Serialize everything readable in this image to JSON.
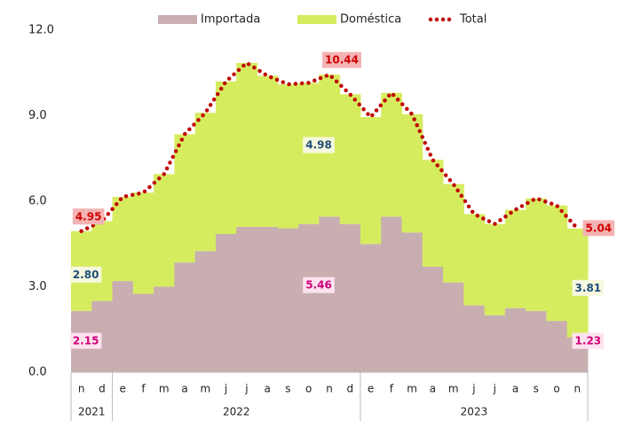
{
  "chart_data": {
    "type": "stacked_step_area",
    "categories": [
      "n",
      "d",
      "e",
      "f",
      "m",
      "a",
      "m",
      "j",
      "j",
      "a",
      "s",
      "o",
      "n",
      "d",
      "e",
      "f",
      "m",
      "a",
      "m",
      "j",
      "j",
      "a",
      "s",
      "o",
      "n"
    ],
    "year_groups": [
      {
        "label": "2021",
        "start": 0,
        "end": 1
      },
      {
        "label": "2022",
        "start": 2,
        "end": 13
      },
      {
        "label": "2023",
        "start": 14,
        "end": 24
      }
    ],
    "series": [
      {
        "name": "Importada",
        "color": "#c8aeb1",
        "values": [
          2.15,
          2.5,
          3.2,
          2.75,
          3.0,
          3.85,
          4.25,
          4.85,
          5.1,
          5.1,
          5.05,
          5.2,
          5.46,
          5.2,
          4.5,
          5.46,
          4.9,
          3.7,
          3.15,
          2.35,
          2.0,
          2.25,
          2.15,
          1.8,
          1.23
        ],
        "value_labels": [
          "2.15",
          null,
          null,
          null,
          null,
          null,
          null,
          null,
          null,
          null,
          null,
          null,
          "5.46",
          null,
          null,
          null,
          null,
          null,
          null,
          null,
          null,
          null,
          null,
          null,
          "1.23"
        ]
      },
      {
        "name": "Doméstica",
        "color": "#d6ec5f",
        "values": [
          2.8,
          2.8,
          2.95,
          3.55,
          3.95,
          4.5,
          4.85,
          5.35,
          5.75,
          5.3,
          5.05,
          4.95,
          4.98,
          4.55,
          4.45,
          4.34,
          4.15,
          3.75,
          3.45,
          3.2,
          3.2,
          3.45,
          3.95,
          4.05,
          3.81
        ],
        "value_labels": [
          "2.80",
          null,
          null,
          null,
          null,
          null,
          null,
          null,
          null,
          null,
          null,
          null,
          "4.98",
          null,
          null,
          null,
          null,
          null,
          null,
          null,
          null,
          null,
          null,
          null,
          "3.81"
        ]
      },
      {
        "name": "Total",
        "color": "#c00000",
        "values": [
          4.95,
          5.3,
          6.15,
          6.3,
          6.95,
          8.35,
          9.1,
          10.2,
          10.85,
          10.4,
          10.1,
          10.15,
          10.44,
          9.75,
          8.95,
          9.8,
          9.05,
          7.45,
          6.6,
          5.55,
          5.2,
          5.7,
          6.1,
          5.85,
          5.04
        ],
        "value_labels": [
          "4.95",
          null,
          null,
          null,
          null,
          null,
          null,
          null,
          null,
          null,
          null,
          null,
          "10.44",
          null,
          null,
          null,
          null,
          null,
          null,
          null,
          null,
          null,
          null,
          null,
          "5.04"
        ]
      }
    ],
    "ylim": [
      0,
      12
    ],
    "yticks": [
      {
        "value": 0,
        "label": "0.0"
      },
      {
        "value": 3,
        "label": "3.0"
      },
      {
        "value": 6,
        "label": "6.0"
      },
      {
        "value": 9,
        "label": "9.0"
      },
      {
        "value": 12,
        "label": "12.0"
      }
    ]
  }
}
